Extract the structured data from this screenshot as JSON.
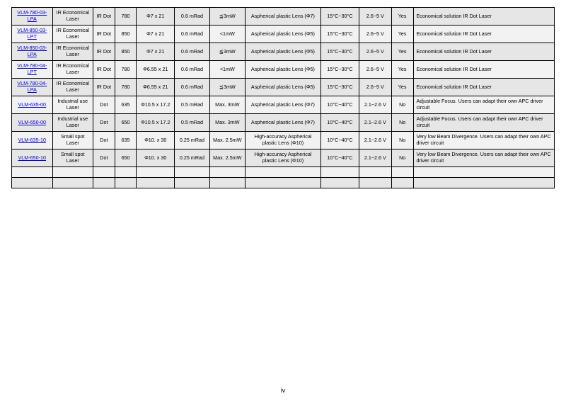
{
  "page_number": "iv",
  "colors": {
    "row_shade_a": "#e6e6e6",
    "row_shade_b": "#f2f2f2",
    "link": "#0000cc",
    "border": "#000000",
    "bg": "#ffffff"
  },
  "columns": [
    "model",
    "category",
    "type",
    "wavelength",
    "dimensions",
    "divergence",
    "power",
    "lens",
    "temp",
    "voltage",
    "apc",
    "description"
  ],
  "rows": [
    {
      "shade": "a",
      "model": "VLM-780-03-LPA",
      "category": "IR Economical Laser",
      "type": "IR Dot",
      "wavelength": "780",
      "dimensions": "Φ7 x 21",
      "divergence": "0.6 mRad",
      "power": "≦3mW",
      "lens": "Aspherical plastic Lens (Φ7)",
      "temp": "15°C~30°C",
      "voltage": "2.6~5 V",
      "apc": "Yes",
      "description": "Economical solution IR Dot Laser"
    },
    {
      "shade": "b",
      "model": "VLM-850-03-LPT",
      "category": "IR Economical Laser",
      "type": "IR Dot",
      "wavelength": "850",
      "dimensions": "Φ7 x 21",
      "divergence": "0.6 mRad",
      "power": "<1mW",
      "lens": "Aspherical plastic Lens (Φ5)",
      "temp": "15°C~30°C",
      "voltage": "2.6~5 V",
      "apc": "Yes",
      "description": "Economical solution IR Dot Laser"
    },
    {
      "shade": "a",
      "model": "VLM-850-03-LPA",
      "category": "IR Economical Laser",
      "type": "IR Dot",
      "wavelength": "850",
      "dimensions": "Φ7 x 21",
      "divergence": "0.6 mRad",
      "power": "≦3mW",
      "lens": "Aspherical plastic Lens (Φ5)",
      "temp": "15°C~30°C",
      "voltage": "2.6~5 V",
      "apc": "Yes",
      "description": "Economical solution IR Dot Laser"
    },
    {
      "shade": "b",
      "model": "VLM-780-04-LPT",
      "category": "IR Economical Laser",
      "type": "IR Dot",
      "wavelength": "780",
      "dimensions": "Φ6.55 x 21",
      "divergence": "0.6 mRad",
      "power": "<1mW",
      "lens": "Aspherical plastic Lens (Φ5)",
      "temp": "15°C~30°C",
      "voltage": "2.6~5 V",
      "apc": "Yes",
      "description": "Economical solution IR Dot Laser"
    },
    {
      "shade": "a",
      "model": "VLM-780-04-LPA",
      "category": "IR Economical Laser",
      "type": "IR Dot",
      "wavelength": "780",
      "dimensions": "Φ6.55 x 21",
      "divergence": "0.6 mRad",
      "power": "≦3mW",
      "lens": "Aspherical plastic Lens (Φ5)",
      "temp": "15°C~30°C",
      "voltage": "2.6~5 V",
      "apc": "Yes",
      "description": "Economical solution IR Dot Laser"
    },
    {
      "shade": "b",
      "model": "VLM-635-00",
      "category": "Industrial use Laser",
      "type": "Dot",
      "wavelength": "635",
      "dimensions": "Φ10.5 x 17.2",
      "divergence": "0.5 mRad",
      "power": "Max. 3mW",
      "lens": "Aspherical plastic Lens (Φ7)",
      "temp": "10°C~40°C",
      "voltage": "2.1~2.6 V",
      "apc": "No",
      "description": "Adjustable Focus. Users can adapt their own APC driver circuit"
    },
    {
      "shade": "a",
      "model": "VLM-650-00",
      "category": "Industrial use Laser",
      "type": "Dot",
      "wavelength": "650",
      "dimensions": "Φ10.5 x 17.2",
      "divergence": "0.5 mRad",
      "power": "Max. 3mW",
      "lens": "Aspherical plastic Lens (Φ7)",
      "temp": "10°C~40°C",
      "voltage": "2.1~2.6 V",
      "apc": "No",
      "description": "Adjustable Focus. Users can adapt their own APC driver circuit"
    },
    {
      "shade": "b",
      "model": "VLM-635-10",
      "category": "Small spot Laser",
      "type": "Dot",
      "wavelength": "635",
      "dimensions": "Φ10. x 30",
      "divergence": "0.25 mRad",
      "power": "Max. 2.5mW",
      "lens": "High-accuracy Aspherical plastic Lens (Φ10)",
      "temp": "10°C~40°C",
      "voltage": "2.1~2.6 V",
      "apc": "No",
      "description": "Very low Beam Divergence. Users can adapt their own APC driver circuit"
    },
    {
      "shade": "a",
      "model": "VLM-650-10",
      "category": "Small spot Laser",
      "type": "Dot",
      "wavelength": "650",
      "dimensions": "Φ10. x 30",
      "divergence": "0.25 mRad",
      "power": "Max. 2.5mW",
      "lens": "High-accuracy Aspherical plastic Lens (Φ10)",
      "temp": "10°C~40°C",
      "voltage": "2.1~2.6 V",
      "apc": "No",
      "description": "Very low Beam Divergence. Users can adapt their own APC driver circuit"
    }
  ],
  "empty_rows": 2
}
